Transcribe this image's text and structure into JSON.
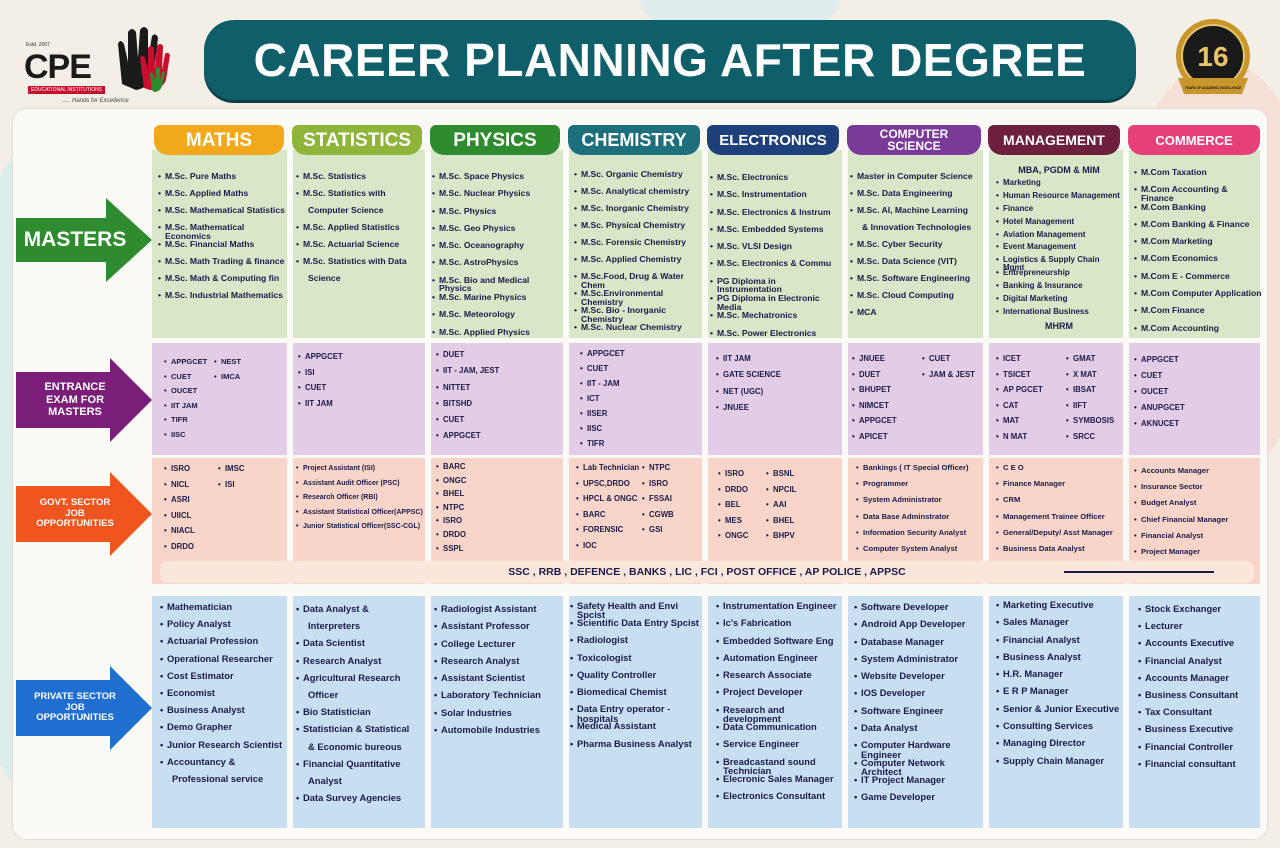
{
  "logo": {
    "est": "Estd. 2007",
    "name": "CPE",
    "subtitle": "EDUCATIONAL INSTITUTIONS",
    "tagline": "..... Hands for Excellence"
  },
  "badge": {
    "number": "16",
    "text": "YEARS OF ACADEMIC EXCELLENCE"
  },
  "title": "CAREER PLANNING AFTER DEGREE",
  "rows": {
    "masters": "MASTERS",
    "entrance": "ENTRANCE EXAM FOR MASTERS",
    "govt": "GOVT. SECTOR JOB OPPORTUNITIES",
    "private": "PRIVATE SECTOR JOB OPPORTUNITIES"
  },
  "govt_common": "SSC , RRB , DEFENCE , BANKS , LIC , FCI , POST OFFICE , AP POLICE , APPSC",
  "columns": [
    {
      "head": "MATHS",
      "color": "#f2a81b",
      "masters": [
        "M.Sc. Pure Maths",
        "M.Sc. Applied Maths",
        "M.Sc. Mathematical Statistics",
        "M.Sc. Mathematical Economics",
        "M.Sc. Financial Maths",
        "M.Sc. Math Trading & finance",
        "M.Sc. Math & Computing fin",
        "M.Sc. Industrial Mathematics"
      ],
      "entrance_a": [
        "APPGCET",
        "CUET",
        "OUCET",
        "IIT JAM",
        "TIFR",
        "IISC"
      ],
      "entrance_b": [
        "NEST",
        "IMCA"
      ],
      "govt_a": [
        "ISRO",
        "NICL",
        "ASRI",
        "UIICL",
        "NIACL",
        "DRDO"
      ],
      "govt_b": [
        "IMSC",
        "ISI"
      ],
      "private": [
        "Mathematician",
        "Policy Analyst",
        "Actuarial Profession",
        "Operational Researcher",
        "Cost Estimator",
        "Economist",
        "Business Analyst",
        "Demo Grapher",
        "Junior Research Scientist",
        "Accountancy &",
        "Professional service"
      ]
    },
    {
      "head": "STATISTICS",
      "color": "#8fb43a",
      "masters": [
        "M.Sc. Statistics",
        "M.Sc. Statistics with",
        "Computer Science",
        "M.Sc. Applied Statistics",
        "M.Sc. Actuarial Science",
        "M.Sc. Statistics with Data",
        "Science"
      ],
      "entrance_a": [
        "APPGCET",
        "ISI",
        "CUET",
        "IIT JAM"
      ],
      "govt_a": [
        "Project Assistant (ISI)",
        "Assistant Audit Officer (PSC)",
        "Research Officer (RBI)",
        "Assistant Statistical Officer(APPSC)",
        "Junior Statistical Officer(SSC-CGL)"
      ],
      "private": [
        "Data Analyst &",
        "Interpreters",
        "Data Scientist",
        "Research Analyst",
        "Agricultural Research",
        "Officer",
        "Bio Statistician",
        "Statistician & Statistical",
        "& Economic bureous",
        "Financial Quantitative",
        "Analyst",
        "Data Survey Agencies"
      ]
    },
    {
      "head": "PHYSICS",
      "color": "#2e8b2e",
      "masters": [
        "M.Sc. Space Physics",
        "M.Sc. Nuclear Physics",
        "M.Sc. Physics",
        "M.Sc. Geo Physics",
        "M.Sc. Oceanography",
        "M.Sc. AstroPhysics",
        "M.Sc. Bio and Medical Physics",
        "M.Sc. Marine Physics",
        "M.Sc. Meteorology",
        "M.Sc. Applied Physics"
      ],
      "entrance_a": [
        "DUET",
        "IIT - JAM, JEST",
        "NITTET",
        "BITSHD",
        "CUET",
        "APPGCET"
      ],
      "govt_a": [
        "BARC",
        "ONGC",
        "BHEL",
        "NTPC",
        "ISRO",
        "DRDO",
        "SSPL"
      ],
      "private": [
        "Radiologist Assistant",
        "Assistant Professor",
        "College Lecturer",
        "Research Analyst",
        "Assistant Scientist",
        "Laboratory Technician",
        "Solar Industries",
        "Automobile Industries"
      ]
    },
    {
      "head": "CHEMISTRY",
      "color": "#1e6f7c",
      "masters": [
        "M.Sc. Organic Chemistry",
        "M.Sc. Analytical chemistry",
        "M.Sc. Inorganic Chemistry",
        "M.Sc. Physical Chemistry",
        "M.Sc. Forensic Chemistry",
        "M.Sc. Applied Chemistry",
        "M.Sc.Food, Drug & Water Chem",
        "M.Sc.Environmental Chemistry",
        "M.Sc. Bio - Inorganic Chemistry",
        "M.Sc. Nuclear Chemistry"
      ],
      "entrance_a": [
        "APPGCET",
        "CUET",
        "IIT - JAM",
        "ICT",
        "IISER",
        "IISC",
        "TIFR"
      ],
      "govt_a": [
        "Lab Technician",
        "UPSC,DRDO",
        "HPCL & ONGC",
        "BARC",
        "FORENSIC",
        "IOC"
      ],
      "govt_b": [
        "NTPC",
        "ISRO",
        "FSSAI",
        "CGWB",
        "GSI"
      ],
      "private": [
        "Safety Health and Envi Spcist",
        "Scientific Data Entry Spcist",
        "Radiologist",
        "Toxicologist",
        "Quality Controller",
        "Biomedical Chemist",
        "Data Entry operator -hospitals",
        "Medical Assistant",
        "Pharma Business Analyst"
      ]
    },
    {
      "head": "ELECTRONICS",
      "color": "#1d3f7a",
      "masters": [
        "M.Sc. Electronics",
        "M.Sc. Instrumentation",
        "M.Sc. Electronics & Instrum",
        "M.Sc. Embedded Systems",
        "M.Sc. VLSI Design",
        "M.Sc. Electronics & Commu",
        "PG Diploma in Instrumentation",
        "PG Diploma in Electronic Media",
        "M.Sc. Mechatronics",
        "M.Sc. Power Electronics"
      ],
      "entrance_a": [
        "IIT JAM",
        "GATE SCIENCE",
        "NET (UGC)",
        "JNUEE"
      ],
      "govt_a": [
        "ISRO",
        "DRDO",
        "BEL",
        "MES",
        "ONGC"
      ],
      "govt_b": [
        "BSNL",
        "NPCIL",
        "AAI",
        "BHEL",
        "BHPV"
      ],
      "private": [
        "Instrumentation Engineer",
        "Ic's Fabrication",
        "Embedded Software Eng",
        "Automation Engineer",
        "Research Associate",
        "Project Developer",
        "Research and development",
        "Data Communication",
        "Service Engineer",
        "Breadcastand sound Technician",
        "Elecronic Sales Manager",
        "Electronics Consultant"
      ]
    },
    {
      "head": "COMPUTER SCIENCE",
      "color": "#7a3a98",
      "masters": [
        "Master in Computer Science",
        "M.Sc. Data Engineering",
        "M.Sc. AI, Machine Learning",
        "& Innovation Technologies",
        "M.Sc. Cyber Security",
        "M.Sc. Data Science (VIT)",
        "M.Sc. Software Engineering",
        "M.Sc. Cloud Computing",
        "MCA"
      ],
      "entrance_a": [
        "JNUEE",
        "DUET",
        "BHUPET",
        "NIMCET",
        "APPGCET",
        "APICET"
      ],
      "entrance_b": [
        "CUET",
        "JAM & JEST"
      ],
      "govt_a": [
        "Bankings ( IT Special Officer)",
        "Programmer",
        "System Administrator",
        "Data Base Adminstrator",
        "Information Security Analyst",
        "Computer System Analyst"
      ],
      "private": [
        "Software Developer",
        "Android App Developer",
        "Database Manager",
        "System Administrator",
        "Website Developer",
        "IOS Developer",
        "Software Engineer",
        "Data Analyst",
        "Computer Hardware Engineer",
        "Computer Network Architect",
        "IT Project Manager",
        "Game Developer"
      ]
    },
    {
      "head": "MANAGEMENT",
      "color": "#6d1f3d",
      "masters_head": "MBA, PGDM & MIM",
      "masters": [
        "Marketing",
        "Human Resource Management",
        "Finance",
        "Hotel Management",
        "Aviation Management",
        "Event Management",
        "Logistics & Supply Chain Mgmt",
        "Entrepreneurship",
        "Banking & Insurance",
        "Digital Marketing",
        "International Business"
      ],
      "masters_foot": "MHRM",
      "entrance_a": [
        "ICET",
        "TSICET",
        "AP PGCET",
        "CAT",
        "MAT",
        "N MAT"
      ],
      "entrance_b": [
        "GMAT",
        "X MAT",
        "IBSAT",
        "IIFT",
        "SYMBOSIS",
        "SRCC"
      ],
      "govt_a": [
        "C E O",
        "Finance Manager",
        "CRM",
        "Management Trainee Officer",
        "General/Deputy/ Asst Manager",
        "Business Data Analyst"
      ],
      "private": [
        "Marketing Executive",
        "Sales Manager",
        "Financial Analyst",
        "Business Analyst",
        "H.R. Manager",
        "E R P Manager",
        "Senior & Junior Executive",
        "Consulting Services",
        "Managing Director",
        "Supply Chain Manager"
      ]
    },
    {
      "head": "COMMERCE",
      "color": "#e5407a",
      "masters": [
        "M.Com Taxation",
        "M.Com Accounting & Finance",
        "M.Com Banking",
        "M.Com Banking & Finance",
        "M.Com Marketing",
        "M.Com Economics",
        "M.Com E - Commerce",
        "M.Com Computer Application",
        "M.Com Finance",
        "M.Com Accounting"
      ],
      "entrance_a": [
        "APPGCET",
        "CUET",
        "OUCET",
        "ANUPGCET",
        "AKNUCET"
      ],
      "govt_a": [
        "Accounts Manager",
        "Insurance Sector",
        "Budget Analyst",
        "Chief Financial Manager",
        "Financial Analyst",
        "Project Manager"
      ],
      "private": [
        "Stock Exchanger",
        "Lecturer",
        "Accounts Executive",
        "Financial Analyst",
        "Accounts Manager",
        "Business Consultant",
        "Tax Consultant",
        "Business Executive",
        "Financial Controller",
        "Financial consultant"
      ]
    }
  ]
}
